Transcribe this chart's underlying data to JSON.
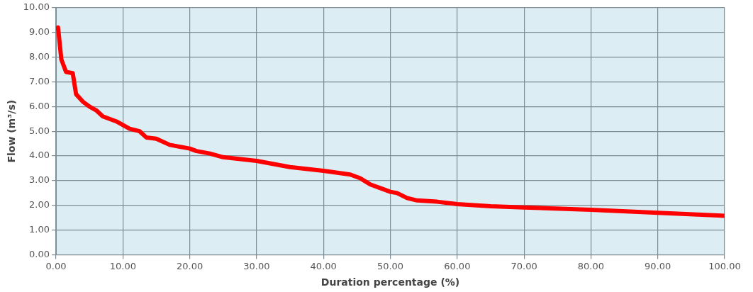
{
  "chart_data": {
    "type": "line",
    "xlabel": "Duration percentage (%)",
    "ylabel": "Flow (m³/s)",
    "x": [
      0.3,
      0.8,
      1.5,
      2.5,
      3.0,
      4,
      5,
      6,
      7,
      9,
      10,
      11,
      12.5,
      13.5,
      15,
      17,
      19,
      20,
      21,
      23,
      25,
      30,
      35,
      40,
      44,
      45.5,
      47,
      49,
      50,
      51,
      52.5,
      54,
      57,
      60,
      65,
      70,
      80,
      90,
      100
    ],
    "series": [
      {
        "color": "#ff0000",
        "values": [
          9.2,
          7.9,
          7.4,
          7.35,
          6.5,
          6.2,
          6.0,
          5.85,
          5.6,
          5.4,
          5.25,
          5.1,
          5.0,
          4.75,
          4.7,
          4.45,
          4.35,
          4.3,
          4.2,
          4.1,
          3.95,
          3.8,
          3.55,
          3.4,
          3.25,
          3.1,
          2.85,
          2.65,
          2.55,
          2.5,
          2.3,
          2.2,
          2.15,
          2.05,
          1.97,
          1.92,
          1.82,
          1.7,
          1.58
        ]
      }
    ],
    "xlim": [
      0,
      100
    ],
    "xticks": [
      {
        "value": 0,
        "label": "0.00"
      },
      {
        "value": 10,
        "label": "10.00"
      },
      {
        "value": 20,
        "label": "20.00"
      },
      {
        "value": 30,
        "label": "30.00"
      },
      {
        "value": 40,
        "label": "40.00"
      },
      {
        "value": 50,
        "label": "50.00"
      },
      {
        "value": 60,
        "label": "60.00"
      },
      {
        "value": 70,
        "label": "70.00"
      },
      {
        "value": 80,
        "label": "80.00"
      },
      {
        "value": 90,
        "label": "90.00"
      },
      {
        "value": 100,
        "label": "100.00"
      }
    ],
    "ylim": [
      0,
      10
    ],
    "yticks": [
      {
        "value": 0,
        "label": "0.00"
      },
      {
        "value": 1,
        "label": "1.00"
      },
      {
        "value": 2,
        "label": "2.00"
      },
      {
        "value": 3,
        "label": "3.00"
      },
      {
        "value": 4,
        "label": "4.00"
      },
      {
        "value": 5,
        "label": "5.00"
      },
      {
        "value": 6,
        "label": "6.00"
      },
      {
        "value": 7,
        "label": "7.00"
      },
      {
        "value": 8,
        "label": "8.00"
      },
      {
        "value": 9,
        "label": "9.00"
      },
      {
        "value": 10,
        "label": "10.00"
      }
    ],
    "grid": true,
    "legend": false,
    "marker": "none",
    "line_style": "solid"
  }
}
